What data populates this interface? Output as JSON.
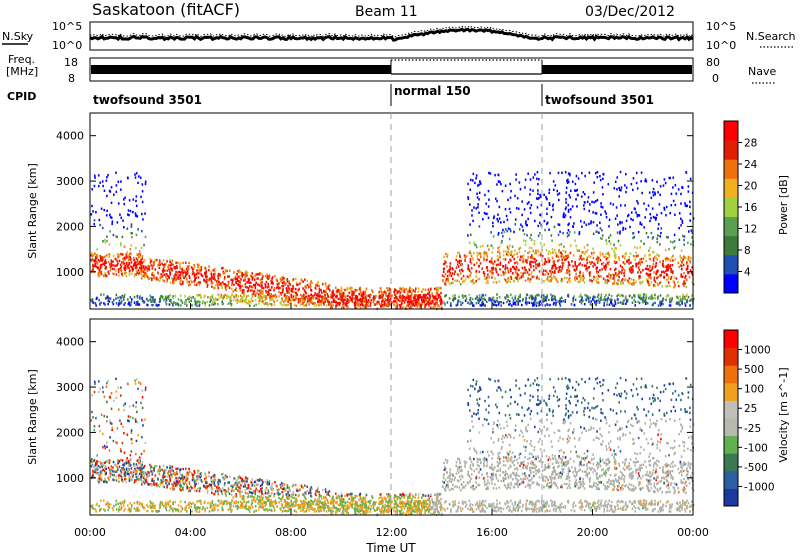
{
  "header": {
    "radar": "Saskatoon (fitACF)",
    "beam": "Beam 11",
    "date": "03/Dec/2012"
  },
  "top_panel": {
    "nsky_label": "N.Sky",
    "nsearch_label": "N.Search",
    "left_ticks": [
      "10^5",
      "10^0"
    ],
    "right_ticks": [
      "10^5",
      "10^0"
    ],
    "freq_label": "Freq.",
    "freq_unit": "[MHz]",
    "freq_ticks": [
      "18",
      "8"
    ],
    "nave_label": "Nave",
    "nave_ticks": [
      "80",
      "0"
    ],
    "cpid_label": "CPID",
    "cpid_segments": [
      {
        "label": "twofsound 3501",
        "start": 0,
        "end": 12
      },
      {
        "label": "normal 150",
        "start": 12,
        "end": 18
      },
      {
        "label": "twofsound 3501",
        "start": 18,
        "end": 24
      }
    ]
  },
  "chart_data": [
    {
      "type": "heatmap",
      "name": "power-panel",
      "ylabel": "Slant Range [km]",
      "ylim": [
        180,
        4500
      ],
      "y_ticks": [
        "1000",
        "2000",
        "3000",
        "4000"
      ],
      "x_ticks": [
        "00:00",
        "04:00",
        "08:00",
        "12:00",
        "16:00",
        "20:00",
        "00:00"
      ],
      "xlim": [
        0,
        24
      ],
      "colorbar": {
        "label": "Power [dB]",
        "ticks": [
          "28",
          "24",
          "20",
          "16",
          "12",
          "8",
          "4"
        ],
        "colors": [
          "#0000ff",
          "#2050b0",
          "#3a7a3a",
          "#5aa050",
          "#a0d040",
          "#f0b020",
          "#f07010",
          "#e02000",
          "#ff0000"
        ]
      }
    },
    {
      "type": "heatmap",
      "name": "velocity-panel",
      "ylabel": "Slant Range [km]",
      "ylim": [
        180,
        4500
      ],
      "y_ticks": [
        "1000",
        "2000",
        "3000",
        "4000"
      ],
      "x_ticks": [
        "00:00",
        "04:00",
        "08:00",
        "12:00",
        "16:00",
        "20:00",
        "00:00"
      ],
      "xlabel": "Time UT",
      "xlim": [
        0,
        24
      ],
      "colorbar": {
        "label": "Velocity [m s^-1]",
        "ticks": [
          "1000",
          "500",
          "100",
          "25",
          "-25",
          "-100",
          "-500",
          "-1000"
        ],
        "colors": [
          "#1a3aa0",
          "#2a60a0",
          "#3a7a50",
          "#60b050",
          "#b8b8b0",
          "#c0c0b8",
          "#f0a020",
          "#f07010",
          "#e03000",
          "#ff0000"
        ]
      }
    }
  ],
  "colors": {
    "ground_scatter": "#b0b0a8",
    "divider": "#a0a0a0"
  }
}
